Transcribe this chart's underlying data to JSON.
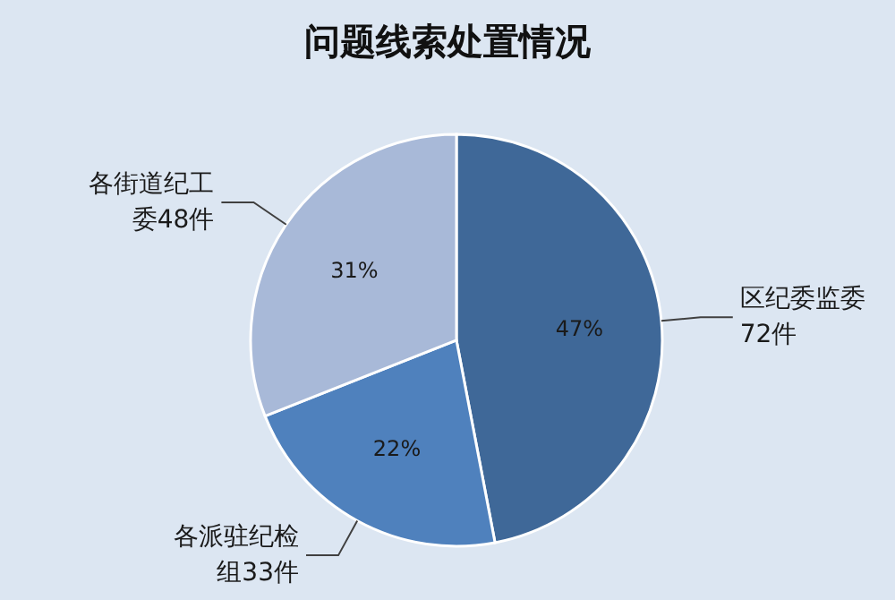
{
  "chart_data": {
    "type": "pie",
    "title": "问题线索处置情况",
    "categories": [
      "区纪委监委72件",
      "各派驻纪检组33件",
      "各街道纪工委48件"
    ],
    "values": [
      47,
      22,
      31
    ],
    "value_labels": [
      "47%",
      "22%",
      "31%"
    ],
    "colors": [
      "#3f6898",
      "#4f81bd",
      "#a8b9d8"
    ]
  }
}
